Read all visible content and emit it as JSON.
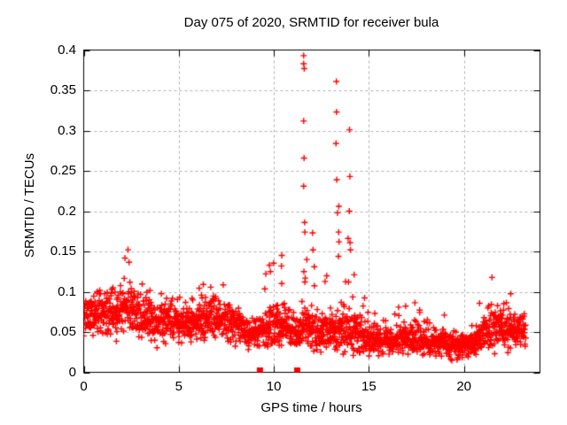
{
  "chart_data": {
    "type": "scatter",
    "title": "Day 075 of 2020, SRMTID for receiver bula",
    "xlabel": "GPS time / hours",
    "ylabel": "SRMTID / TECUs",
    "xlim": [
      0,
      24
    ],
    "ylim": [
      0,
      0.4
    ],
    "xticks": [
      {
        "v": 0,
        "label": "0"
      },
      {
        "v": 5,
        "label": "5"
      },
      {
        "v": 10,
        "label": "10"
      },
      {
        "v": 15,
        "label": "15"
      },
      {
        "v": 20,
        "label": "20"
      }
    ],
    "yticks": [
      {
        "v": 0,
        "label": "0"
      },
      {
        "v": 0.05,
        "label": "0.05"
      },
      {
        "v": 0.1,
        "label": "0.1"
      },
      {
        "v": 0.15,
        "label": "0.15"
      },
      {
        "v": 0.2,
        "label": "0.2"
      },
      {
        "v": 0.25,
        "label": "0.25"
      },
      {
        "v": 0.3,
        "label": "0.3"
      },
      {
        "v": 0.35,
        "label": "0.35"
      },
      {
        "v": 0.4,
        "label": "0.4"
      }
    ],
    "grid": true,
    "legend": "none",
    "marker": {
      "symbol": "plus",
      "size": 7,
      "stroke": 1.4
    },
    "colors": {
      "background": "#ffffff",
      "axes": "#000000",
      "grid": "#b0b0b0",
      "data": "#ff0000"
    },
    "series": [
      {
        "name": "srmtid-band",
        "style": "procedural-band",
        "t_start": 0.0,
        "t_end": 23.25,
        "n_points": 2100,
        "seed": 2020075,
        "noise_scale": 1.7,
        "tail_probability": 0.12,
        "tail_exponent": 2.2,
        "v_floor": 0.006,
        "band_profile": {
          "hours": [
            0.0,
            0.7,
            1.4,
            2.0,
            2.4,
            2.8,
            3.3,
            3.8,
            4.3,
            4.8,
            5.3,
            5.8,
            6.3,
            6.9,
            7.4,
            7.9,
            8.4,
            8.9,
            9.4,
            9.8,
            10.4,
            10.9,
            11.3,
            11.6,
            12.1,
            12.5,
            12.9,
            13.4,
            14.0,
            14.5,
            15.0,
            15.6,
            16.2,
            16.8,
            17.4,
            18.0,
            18.6,
            19.2,
            19.8,
            20.4,
            21.0,
            21.6,
            22.2,
            22.8,
            23.25
          ],
          "center": [
            0.068,
            0.072,
            0.072,
            0.08,
            0.082,
            0.07,
            0.065,
            0.06,
            0.066,
            0.06,
            0.058,
            0.06,
            0.064,
            0.07,
            0.066,
            0.058,
            0.054,
            0.048,
            0.052,
            0.058,
            0.058,
            0.048,
            0.05,
            0.058,
            0.05,
            0.045,
            0.048,
            0.052,
            0.05,
            0.042,
            0.042,
            0.038,
            0.036,
            0.042,
            0.044,
            0.04,
            0.036,
            0.034,
            0.032,
            0.036,
            0.046,
            0.055,
            0.053,
            0.05,
            0.058
          ],
          "halfwidth": [
            0.018,
            0.022,
            0.024,
            0.026,
            0.026,
            0.022,
            0.02,
            0.02,
            0.022,
            0.018,
            0.018,
            0.018,
            0.02,
            0.024,
            0.022,
            0.018,
            0.016,
            0.016,
            0.016,
            0.02,
            0.022,
            0.018,
            0.018,
            0.02,
            0.02,
            0.018,
            0.018,
            0.022,
            0.022,
            0.02,
            0.016,
            0.014,
            0.013,
            0.016,
            0.016,
            0.015,
            0.014,
            0.013,
            0.013,
            0.014,
            0.018,
            0.022,
            0.02,
            0.018,
            0.02
          ],
          "peak": [
            0.1,
            0.12,
            0.125,
            0.15,
            0.155,
            0.12,
            0.11,
            0.1,
            0.115,
            0.095,
            0.095,
            0.1,
            0.115,
            0.135,
            0.115,
            0.095,
            0.085,
            0.08,
            0.13,
            0.135,
            0.145,
            0.085,
            0.09,
            0.19,
            0.175,
            0.12,
            0.14,
            0.205,
            0.195,
            0.11,
            0.085,
            0.075,
            0.07,
            0.095,
            0.09,
            0.085,
            0.075,
            0.075,
            0.075,
            0.085,
            0.115,
            0.125,
            0.11,
            0.1,
            0.105
          ]
        }
      },
      {
        "name": "spike-outliers",
        "style": "explicit-points",
        "points": [
          [
            11.57,
            0.393
          ],
          [
            11.57,
            0.383
          ],
          [
            11.6,
            0.377
          ],
          [
            11.57,
            0.312
          ],
          [
            11.59,
            0.266
          ],
          [
            11.57,
            0.231
          ],
          [
            11.62,
            0.186
          ],
          [
            11.63,
            0.174
          ],
          [
            12.04,
            0.173
          ],
          [
            12.06,
            0.152
          ],
          [
            13.29,
            0.361
          ],
          [
            13.3,
            0.323
          ],
          [
            13.27,
            0.284
          ],
          [
            13.31,
            0.239
          ],
          [
            13.42,
            0.206
          ],
          [
            13.41,
            0.174
          ],
          [
            13.43,
            0.162
          ],
          [
            13.4,
            0.144
          ],
          [
            13.98,
            0.301
          ],
          [
            14.0,
            0.243
          ],
          [
            13.97,
            0.2
          ],
          [
            14.01,
            0.161
          ],
          [
            14.03,
            0.152
          ],
          [
            9.77,
            0.133
          ],
          [
            9.82,
            0.125
          ],
          [
            10.42,
            0.145
          ],
          [
            10.4,
            0.132
          ]
        ]
      },
      {
        "name": "event-flags",
        "style": "filled-squares-on-axis",
        "x": [
          9.27,
          11.23
        ],
        "y": 0,
        "square_size": 7
      }
    ]
  }
}
